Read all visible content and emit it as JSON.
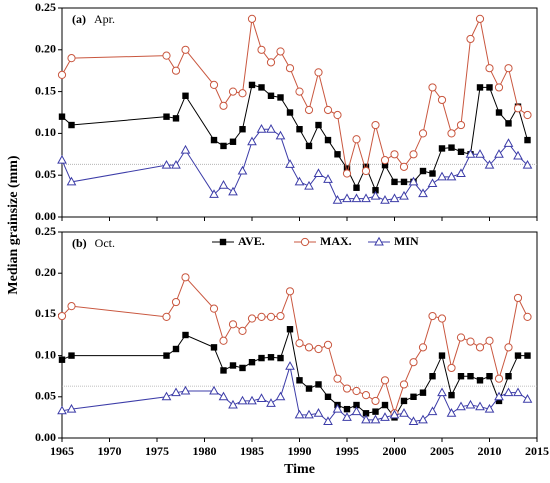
{
  "chart_data": [
    {
      "type": "line",
      "panel_label": "(a)",
      "title": "Apr.",
      "ylabel": "Median grainsize (mm)",
      "x": [
        1965,
        1966,
        1976,
        1977,
        1978,
        1981,
        1982,
        1983,
        1984,
        1985,
        1986,
        1987,
        1988,
        1989,
        1990,
        1991,
        1992,
        1993,
        1994,
        1995,
        1996,
        1997,
        1998,
        1999,
        2000,
        2001,
        2002,
        2003,
        2004,
        2005,
        2006,
        2007,
        2008,
        2009,
        2010,
        2011,
        2012,
        2013,
        2014
      ],
      "xlim": [
        1965,
        2015
      ],
      "ylim": [
        0,
        0.25
      ],
      "yticks": [
        {
          "value": 0,
          "label": "0.00"
        },
        {
          "value": 0.05,
          "label": "0.05"
        },
        {
          "value": 0.1,
          "label": "0.10"
        },
        {
          "value": 0.15,
          "label": "0.15"
        },
        {
          "value": 0.2,
          "label": "0.20"
        },
        {
          "value": 0.25,
          "label": "0.25"
        }
      ],
      "ref_line": 0.063,
      "series": [
        {
          "color": "#000000",
          "marker": "square",
          "values": [
            0.12,
            0.11,
            0.12,
            0.118,
            0.145,
            0.092,
            0.085,
            0.09,
            0.105,
            0.158,
            0.155,
            0.145,
            0.143,
            0.125,
            0.105,
            0.085,
            0.11,
            0.092,
            0.075,
            0.058,
            0.035,
            0.06,
            0.032,
            0.062,
            0.042,
            0.042,
            0.042,
            0.055,
            0.052,
            0.082,
            0.083,
            0.078,
            0.075,
            0.155,
            0.155,
            0.125,
            0.112,
            0.132,
            0.092
          ]
        },
        {
          "color": "#c9573f",
          "marker": "circle",
          "values": [
            0.17,
            0.19,
            0.193,
            0.175,
            0.2,
            0.158,
            0.133,
            0.15,
            0.148,
            0.237,
            0.2,
            0.185,
            0.198,
            0.178,
            0.15,
            0.128,
            0.173,
            0.128,
            0.122,
            0.052,
            0.093,
            0.055,
            0.11,
            0.068,
            0.075,
            0.06,
            0.075,
            0.1,
            0.155,
            0.14,
            0.1,
            0.11,
            0.213,
            0.237,
            0.178,
            0.155,
            0.178,
            0.13,
            0.122
          ]
        },
        {
          "color": "#3c3ca8",
          "marker": "triangle",
          "values": [
            0.068,
            0.042,
            0.062,
            0.062,
            0.08,
            0.027,
            0.038,
            0.03,
            0.055,
            0.09,
            0.105,
            0.105,
            0.097,
            0.063,
            0.042,
            0.037,
            0.052,
            0.045,
            0.02,
            0.022,
            0.022,
            0.022,
            0.025,
            0.02,
            0.022,
            0.025,
            0.042,
            0.028,
            0.04,
            0.048,
            0.048,
            0.052,
            0.075,
            0.075,
            0.062,
            0.075,
            0.088,
            0.073,
            0.062
          ]
        }
      ]
    },
    {
      "type": "line",
      "panel_label": "(b)",
      "title": "Oct.",
      "xlabel": "Time",
      "legend": "top",
      "x": [
        1965,
        1966,
        1976,
        1977,
        1978,
        1981,
        1982,
        1983,
        1984,
        1985,
        1986,
        1987,
        1988,
        1989,
        1990,
        1991,
        1992,
        1993,
        1994,
        1995,
        1996,
        1997,
        1998,
        1999,
        2000,
        2001,
        2002,
        2003,
        2004,
        2005,
        2006,
        2007,
        2008,
        2009,
        2010,
        2011,
        2012,
        2013,
        2014
      ],
      "xlim": [
        1965,
        2015
      ],
      "xticks": [
        1965,
        1970,
        1975,
        1980,
        1985,
        1990,
        1995,
        2000,
        2005,
        2010,
        2015
      ],
      "ylim": [
        0,
        0.25
      ],
      "yticks": [
        {
          "value": 0,
          "label": "0.00"
        },
        {
          "value": 0.05,
          "label": "0.05"
        },
        {
          "value": 0.1,
          "label": "0.10"
        },
        {
          "value": 0.15,
          "label": "0.15"
        },
        {
          "value": 0.2,
          "label": "0.20"
        },
        {
          "value": 0.25,
          "label": "0.25"
        }
      ],
      "ref_line": 0.063,
      "series": [
        {
          "name": "AVE.",
          "color": "#000000",
          "marker": "square",
          "values": [
            0.095,
            0.1,
            0.1,
            0.108,
            0.125,
            0.11,
            0.082,
            0.088,
            0.085,
            0.092,
            0.097,
            0.098,
            0.097,
            0.132,
            0.07,
            0.06,
            0.065,
            0.05,
            0.04,
            0.035,
            0.04,
            0.03,
            0.032,
            0.04,
            0.025,
            0.045,
            0.05,
            0.055,
            0.075,
            0.1,
            0.052,
            0.075,
            0.075,
            0.07,
            0.075,
            0.045,
            0.075,
            0.1,
            0.1
          ]
        },
        {
          "name": "MAX.",
          "color": "#c9573f",
          "marker": "circle",
          "values": [
            0.148,
            0.16,
            0.147,
            0.165,
            0.195,
            0.157,
            0.118,
            0.138,
            0.13,
            0.145,
            0.147,
            0.147,
            0.148,
            0.178,
            0.115,
            0.11,
            0.108,
            0.113,
            0.072,
            0.06,
            0.057,
            0.052,
            0.045,
            0.07,
            0.03,
            0.065,
            0.092,
            0.11,
            0.148,
            0.145,
            0.085,
            0.122,
            0.117,
            0.11,
            0.118,
            0.072,
            0.11,
            0.17,
            0.147
          ]
        },
        {
          "name": "MIN",
          "color": "#3c3ca8",
          "marker": "triangle",
          "values": [
            0.033,
            0.035,
            0.05,
            0.055,
            0.057,
            0.057,
            0.05,
            0.04,
            0.045,
            0.045,
            0.048,
            0.042,
            0.05,
            0.087,
            0.028,
            0.028,
            0.03,
            0.02,
            0.035,
            0.025,
            0.032,
            0.022,
            0.022,
            0.025,
            0.028,
            0.03,
            0.02,
            0.022,
            0.032,
            0.055,
            0.03,
            0.038,
            0.04,
            0.038,
            0.035,
            0.05,
            0.055,
            0.055,
            0.047
          ]
        }
      ]
    }
  ]
}
